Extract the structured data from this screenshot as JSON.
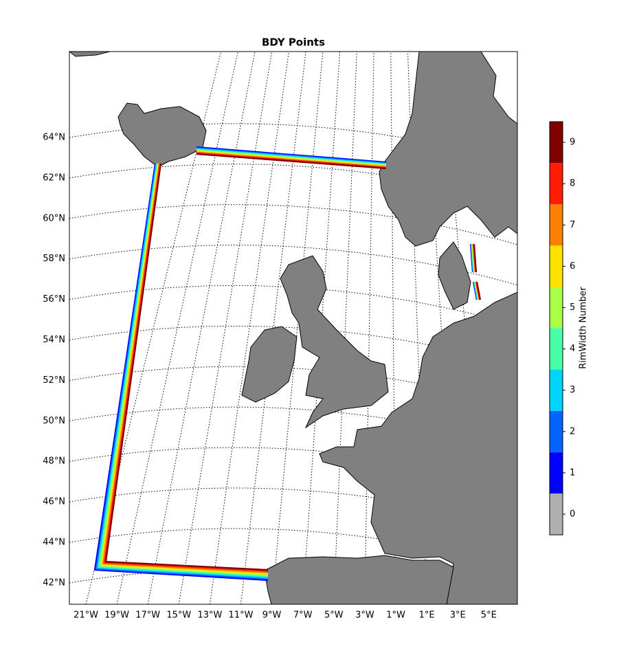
{
  "map": {
    "title": "BDY Points",
    "lat_labels": [
      "64°N",
      "62°N",
      "60°N",
      "58°N",
      "56°N",
      "54°N",
      "52°N",
      "50°N",
      "48°N",
      "46°N",
      "44°N",
      "42°N"
    ],
    "lon_labels": [
      "21°W",
      "19°W",
      "17°W",
      "15°W",
      "13°W",
      "11°W",
      "9°W",
      "7°W",
      "5°W",
      "3°W",
      "1°W",
      "1°E",
      "3°E",
      "5°E"
    ],
    "colorbar": {
      "label": "RimWidth Number",
      "ticks": [
        0,
        1,
        2,
        3,
        4,
        5,
        6,
        7,
        8,
        9
      ],
      "colors": [
        "#b0b0b0",
        "#0000ff",
        "#0064ff",
        "#00d4ff",
        "#46ffa8",
        "#a8ff46",
        "#ffe200",
        "#ff7f00",
        "#ff1e00",
        "#800000"
      ]
    }
  }
}
